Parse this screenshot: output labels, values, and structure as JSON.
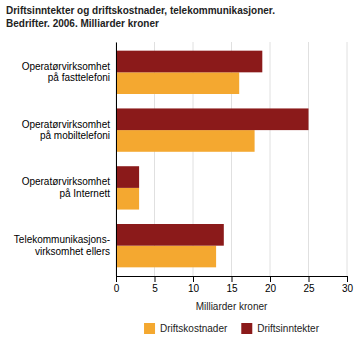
{
  "chart_data": {
    "type": "bar",
    "orientation": "horizontal",
    "title": "Driftsinntekter og driftskostnader, telekommunikasjoner.",
    "subtitle": "Bedrifter. 2006. Milliarder kroner",
    "categories": [
      "Operatørvirksomhet\npå fasttelefoni",
      "Operatørvirksomhet\npå mobiltelefoni",
      "Operatørvirksomhet\npå Internett",
      "Telekommunikasjons-\nvirksomhet ellers"
    ],
    "series": [
      {
        "name": "Driftskostnader",
        "color": "#F4A830",
        "values": [
          16,
          18,
          3,
          13
        ]
      },
      {
        "name": "Driftsinntekter",
        "color": "#8B1A1A",
        "values": [
          19,
          25,
          3,
          14
        ]
      }
    ],
    "xlabel": "Milliarder kroner",
    "xlim": [
      0,
      30
    ],
    "xticks": [
      0,
      5,
      10,
      15,
      20,
      25,
      30
    ],
    "grid": true,
    "legend": "bottom"
  }
}
